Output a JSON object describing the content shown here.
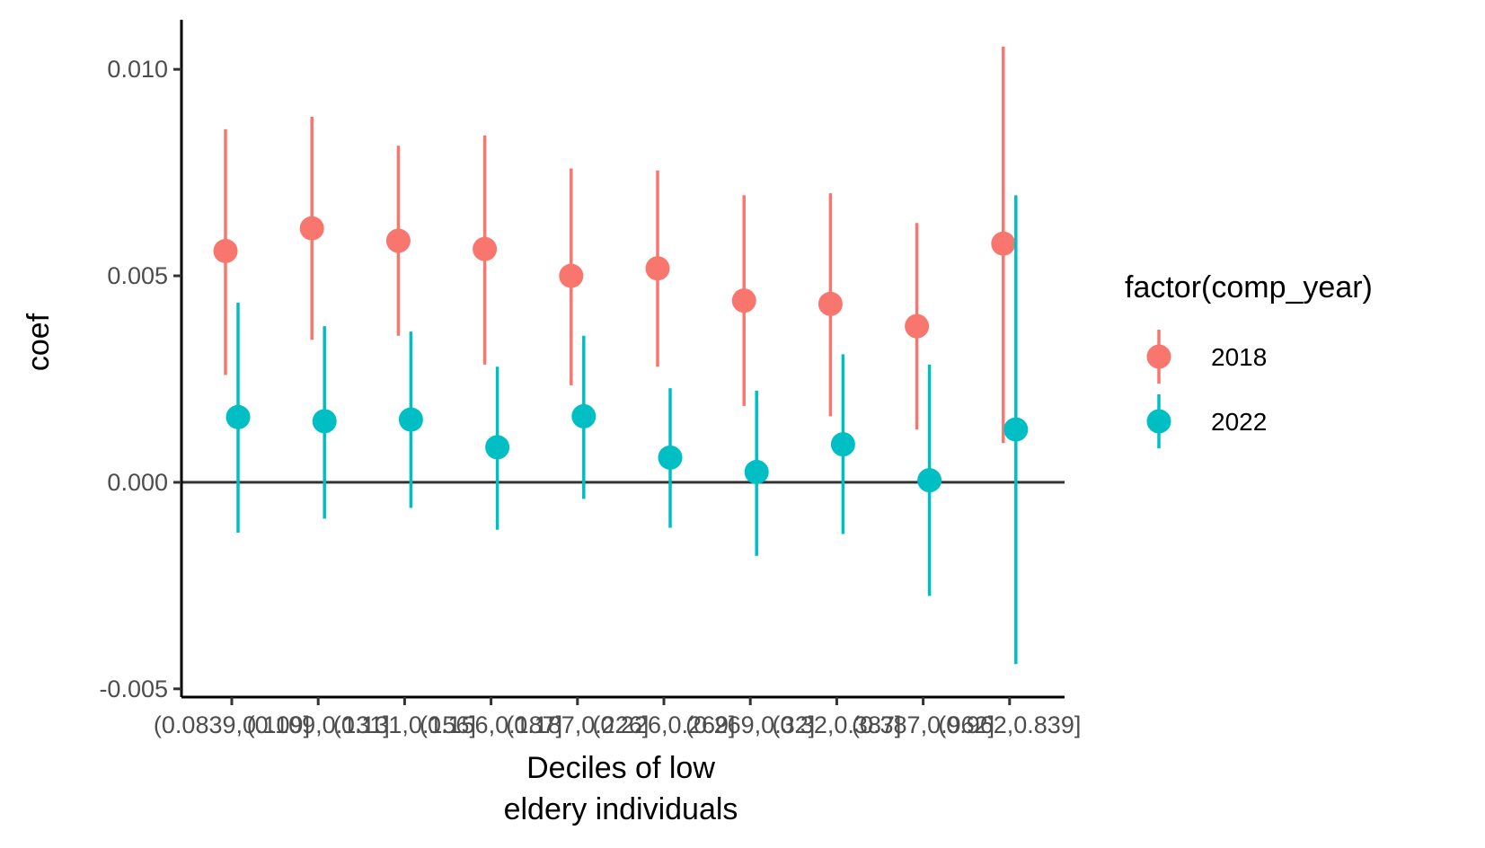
{
  "chart_data": {
    "type": "scatter",
    "subtype": "point-range (coefficient with confidence interval)",
    "title": "",
    "xlabel": [
      "Deciles of low",
      "eldery individuals"
    ],
    "ylabel": "coef",
    "categories": [
      "(0.0839,0.109]",
      "(0.109,0.131]",
      "(0.131,0.156]",
      "(0.156,0.187]",
      "(0.187,0.226]",
      "(0.226,0.269]",
      "(0.269,0.32]",
      "(0.32,0.387]",
      "(0.387,0.962]",
      "(0.962,0.839]"
    ],
    "y_ticks": [
      {
        "value": -0.005,
        "label": "-0.005"
      },
      {
        "value": 0.0,
        "label": "0.000"
      },
      {
        "value": 0.005,
        "label": "0.005"
      },
      {
        "value": 0.01,
        "label": "0.010"
      }
    ],
    "ylim": [
      -0.0052,
      0.0112
    ],
    "reference_line": 0,
    "grid": false,
    "legend": {
      "title": "factor(comp_year)",
      "position": "right"
    },
    "series": [
      {
        "name": "2018",
        "color": "#F8766D",
        "points": [
          {
            "coef": 0.0056,
            "low": 0.0026,
            "high": 0.00855
          },
          {
            "coef": 0.00615,
            "low": 0.00345,
            "high": 0.00885
          },
          {
            "coef": 0.00585,
            "low": 0.00355,
            "high": 0.00815
          },
          {
            "coef": 0.00565,
            "low": 0.00285,
            "high": 0.0084
          },
          {
            "coef": 0.005,
            "low": 0.00235,
            "high": 0.0076
          },
          {
            "coef": 0.00518,
            "low": 0.0028,
            "high": 0.00755
          },
          {
            "coef": 0.0044,
            "low": 0.00185,
            "high": 0.00695
          },
          {
            "coef": 0.00432,
            "low": 0.0016,
            "high": 0.007
          },
          {
            "coef": 0.00378,
            "low": 0.00128,
            "high": 0.00628
          },
          {
            "coef": 0.00578,
            "low": 0.00095,
            "high": 0.01055
          }
        ]
      },
      {
        "name": "2022",
        "color": "#00BFC4",
        "points": [
          {
            "coef": 0.00158,
            "low": -0.00122,
            "high": 0.00435
          },
          {
            "coef": 0.00148,
            "low": -0.00088,
            "high": 0.00378
          },
          {
            "coef": 0.00152,
            "low": -0.00062,
            "high": 0.00365
          },
          {
            "coef": 0.00085,
            "low": -0.00115,
            "high": 0.0028
          },
          {
            "coef": 0.0016,
            "low": -0.0004,
            "high": 0.00355
          },
          {
            "coef": 0.0006,
            "low": -0.0011,
            "high": 0.00228
          },
          {
            "coef": 0.00025,
            "low": -0.00178,
            "high": 0.00222
          },
          {
            "coef": 0.00092,
            "low": -0.00125,
            "high": 0.0031
          },
          {
            "coef": 5e-05,
            "low": -0.00275,
            "high": 0.00285
          },
          {
            "coef": 0.00128,
            "low": -0.0044,
            "high": 0.00695
          }
        ]
      }
    ]
  }
}
